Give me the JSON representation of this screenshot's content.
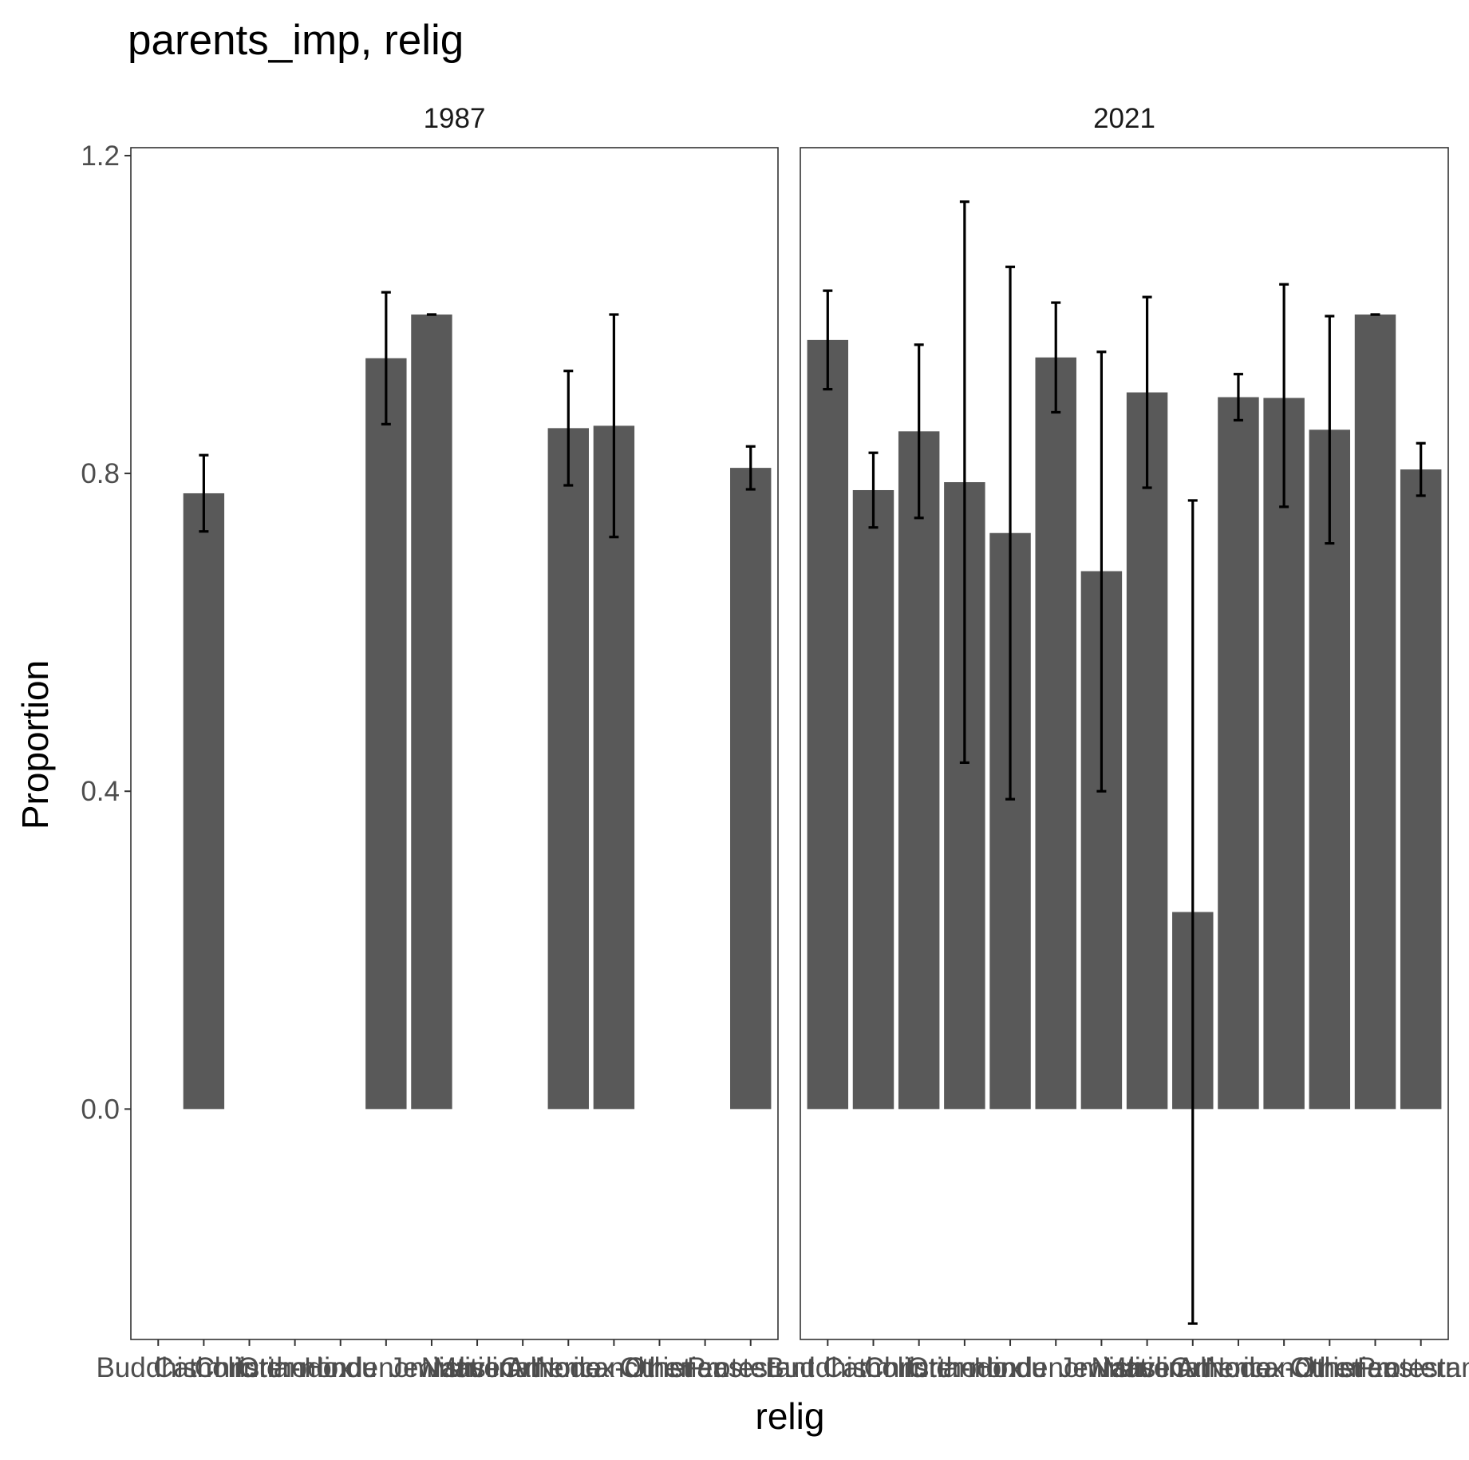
{
  "chart_data": {
    "type": "bar",
    "title": "parents_imp, relig",
    "xlabel": "relig",
    "ylabel": "Proportion",
    "ylim": [
      -0.29,
      1.21
    ],
    "yticks": [
      0.0,
      0.4,
      0.8,
      1.2
    ],
    "ytick_labels": [
      "0.0",
      "0.4",
      "0.8",
      "1.2"
    ],
    "grid": false,
    "bar_color": "#595959",
    "errorbar_color": "#000000",
    "categories": [
      "Buddhism",
      "Catholic",
      "Christian",
      "Orthodox",
      "Hindu",
      "Inter-nondenominational",
      "Jewish",
      "Muslim",
      "Native American",
      "None",
      "Orthodox-christian",
      "Other",
      "Other eastern",
      "Protestant"
    ],
    "facets": [
      {
        "label": "1987",
        "values": [
          null,
          0.775,
          null,
          null,
          null,
          0.945,
          1.0,
          null,
          null,
          0.857,
          0.86,
          null,
          null,
          0.807
        ],
        "err_low": [
          null,
          0.727,
          null,
          null,
          null,
          0.862,
          1.0,
          null,
          null,
          0.785,
          0.72,
          null,
          null,
          0.78
        ],
        "err_high": [
          null,
          0.823,
          null,
          null,
          null,
          1.028,
          1.0,
          null,
          null,
          0.929,
          1.0,
          null,
          null,
          0.834
        ]
      },
      {
        "label": "2021",
        "values": [
          0.968,
          0.779,
          0.853,
          0.789,
          0.725,
          0.946,
          0.677,
          0.902,
          0.248,
          0.896,
          0.895,
          0.855,
          1.0,
          0.805
        ],
        "err_low": [
          0.906,
          0.732,
          0.744,
          0.436,
          0.39,
          0.877,
          0.4,
          0.782,
          -0.27,
          0.867,
          0.758,
          0.712,
          1.0,
          0.772
        ],
        "err_high": [
          1.03,
          0.826,
          0.962,
          1.142,
          1.06,
          1.015,
          0.953,
          1.022,
          0.766,
          0.925,
          1.038,
          0.998,
          1.0,
          0.838
        ]
      }
    ]
  }
}
